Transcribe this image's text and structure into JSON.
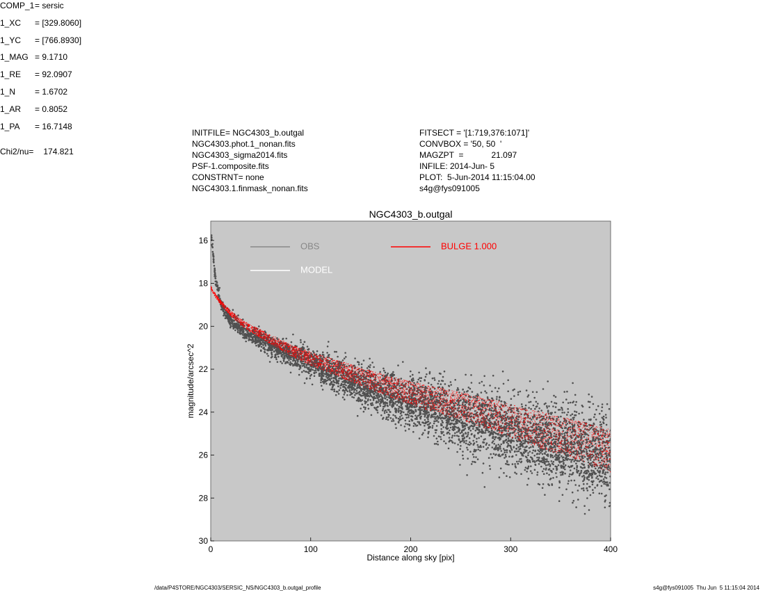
{
  "header_left": [
    "INITFILE= NGC4303_b.outgal",
    "NGC4303.phot.1_nonan.fits",
    "NGC4303_sigma2014.fits",
    "PSF-1.composite.fits",
    "CONSTRNT= none",
    "NGC4303.1.finmask_nonan.fits"
  ],
  "header_mid": [
    "FITSECT = '[1:719,376:1071]'",
    "CONVBOX = '50, 50  '",
    "MAGZPT  =            21.097",
    "INFILE: 2014-Jun- 5",
    "PLOT:  5-Jun-2014 11:15:04.00",
    "s4g@fys091005"
  ],
  "params": [
    {
      "k": "COMP_1",
      "v": "= sersic"
    },
    {
      "k": "1_XC",
      "v": "= [329.8060]"
    },
    {
      "k": "1_YC",
      "v": "= [766.8930]"
    },
    {
      "k": "1_MAG",
      "v": "= 9.1710"
    },
    {
      "k": "1_RE",
      "v": "= 92.0907"
    },
    {
      "k": "1_N",
      "v": "= 1.6702"
    },
    {
      "k": "1_AR",
      "v": "= 0.8052"
    },
    {
      "k": "1_PA",
      "v": "= 16.7148"
    }
  ],
  "chi2": {
    "label": "Chi2/nu=",
    "value": "174.821"
  },
  "footer": {
    "path": "/data/P4STORE/NGC4303/SERSIC_NS/NGC4303_b.outgal_profile",
    "stamp": "s4g@fys091005  Thu Jun  5 11:15:04 2014"
  },
  "chart_data": {
    "type": "scatter",
    "title": "NGC4303_b.outgal",
    "xlabel": "Distance along sky [pix]",
    "ylabel": "magnitude/arcsec^2",
    "xlim": [
      0,
      400
    ],
    "ylim": [
      30,
      15.1
    ],
    "y_inverted": true,
    "x_ticks": [
      0,
      100,
      200,
      300,
      400
    ],
    "y_ticks": [
      16,
      18,
      20,
      22,
      24,
      26,
      28,
      30
    ],
    "background": "#c8c8c8",
    "legend": [
      {
        "label": "OBS",
        "color": "#888888"
      },
      {
        "label": "MODEL",
        "color": "#ffffff"
      },
      {
        "label": "BULGE  1.000",
        "color": "#ff0000"
      }
    ],
    "series": [
      {
        "name": "OBS",
        "color": "#505050",
        "x": [
          1,
          3,
          5,
          8,
          10,
          15,
          20,
          30,
          40,
          50,
          60,
          80,
          100,
          120,
          150,
          180,
          200,
          230,
          260,
          300,
          340,
          380,
          400
        ],
        "y": [
          15.9,
          17.0,
          17.9,
          18.5,
          18.9,
          19.4,
          19.7,
          20.1,
          20.4,
          20.6,
          20.9,
          21.3,
          21.7,
          22.1,
          22.7,
          23.2,
          23.5,
          23.9,
          24.4,
          24.9,
          25.4,
          25.9,
          26.1
        ]
      },
      {
        "name": "BULGE  1.000",
        "color": "#ff0000",
        "x": [
          0,
          5,
          10,
          20,
          30,
          40,
          60,
          80,
          100,
          130,
          160,
          200,
          240,
          280,
          320,
          360,
          400
        ],
        "y": [
          18.2,
          18.6,
          18.9,
          19.4,
          19.8,
          20.1,
          20.6,
          21.1,
          21.5,
          22.0,
          22.5,
          23.1,
          23.6,
          24.1,
          24.7,
          25.2,
          25.8
        ]
      }
    ]
  }
}
